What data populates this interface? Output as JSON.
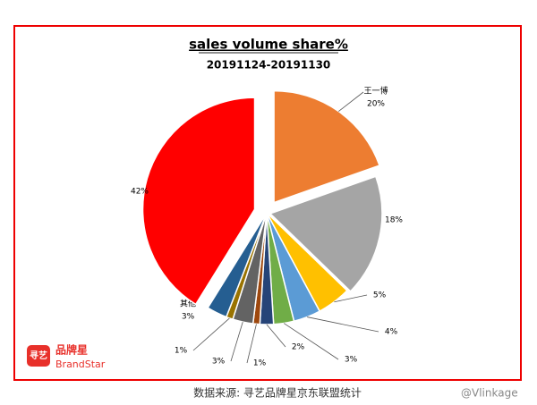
{
  "chart_data": {
    "type": "pie",
    "title": "sales volume share%",
    "subtitle": "20191124-20191130",
    "categories": [
      "王一博",
      null,
      null,
      null,
      null,
      null,
      null,
      null,
      null,
      "其他",
      null
    ],
    "values": [
      20,
      18,
      5,
      4,
      3,
      2,
      1,
      3,
      1,
      3,
      42
    ],
    "value_labels": [
      "20%",
      "18%",
      "5%",
      "4%",
      "3%",
      "2%",
      "1%",
      "3%",
      "1%",
      "3%",
      "42%"
    ],
    "colors": [
      "#ed7d31",
      "#a5a5a5",
      "#ffc000",
      "#5b9bd5",
      "#70ad47",
      "#264478",
      "#9e480e",
      "#636363",
      "#997300",
      "#255e91",
      "#ff0000"
    ]
  },
  "logo": {
    "icon": "寻艺",
    "name": "品牌星",
    "sub": "BrandStar"
  },
  "source": "数据来源: 寻艺品牌星京东联盟统计",
  "watermark": "@Vlinkage"
}
